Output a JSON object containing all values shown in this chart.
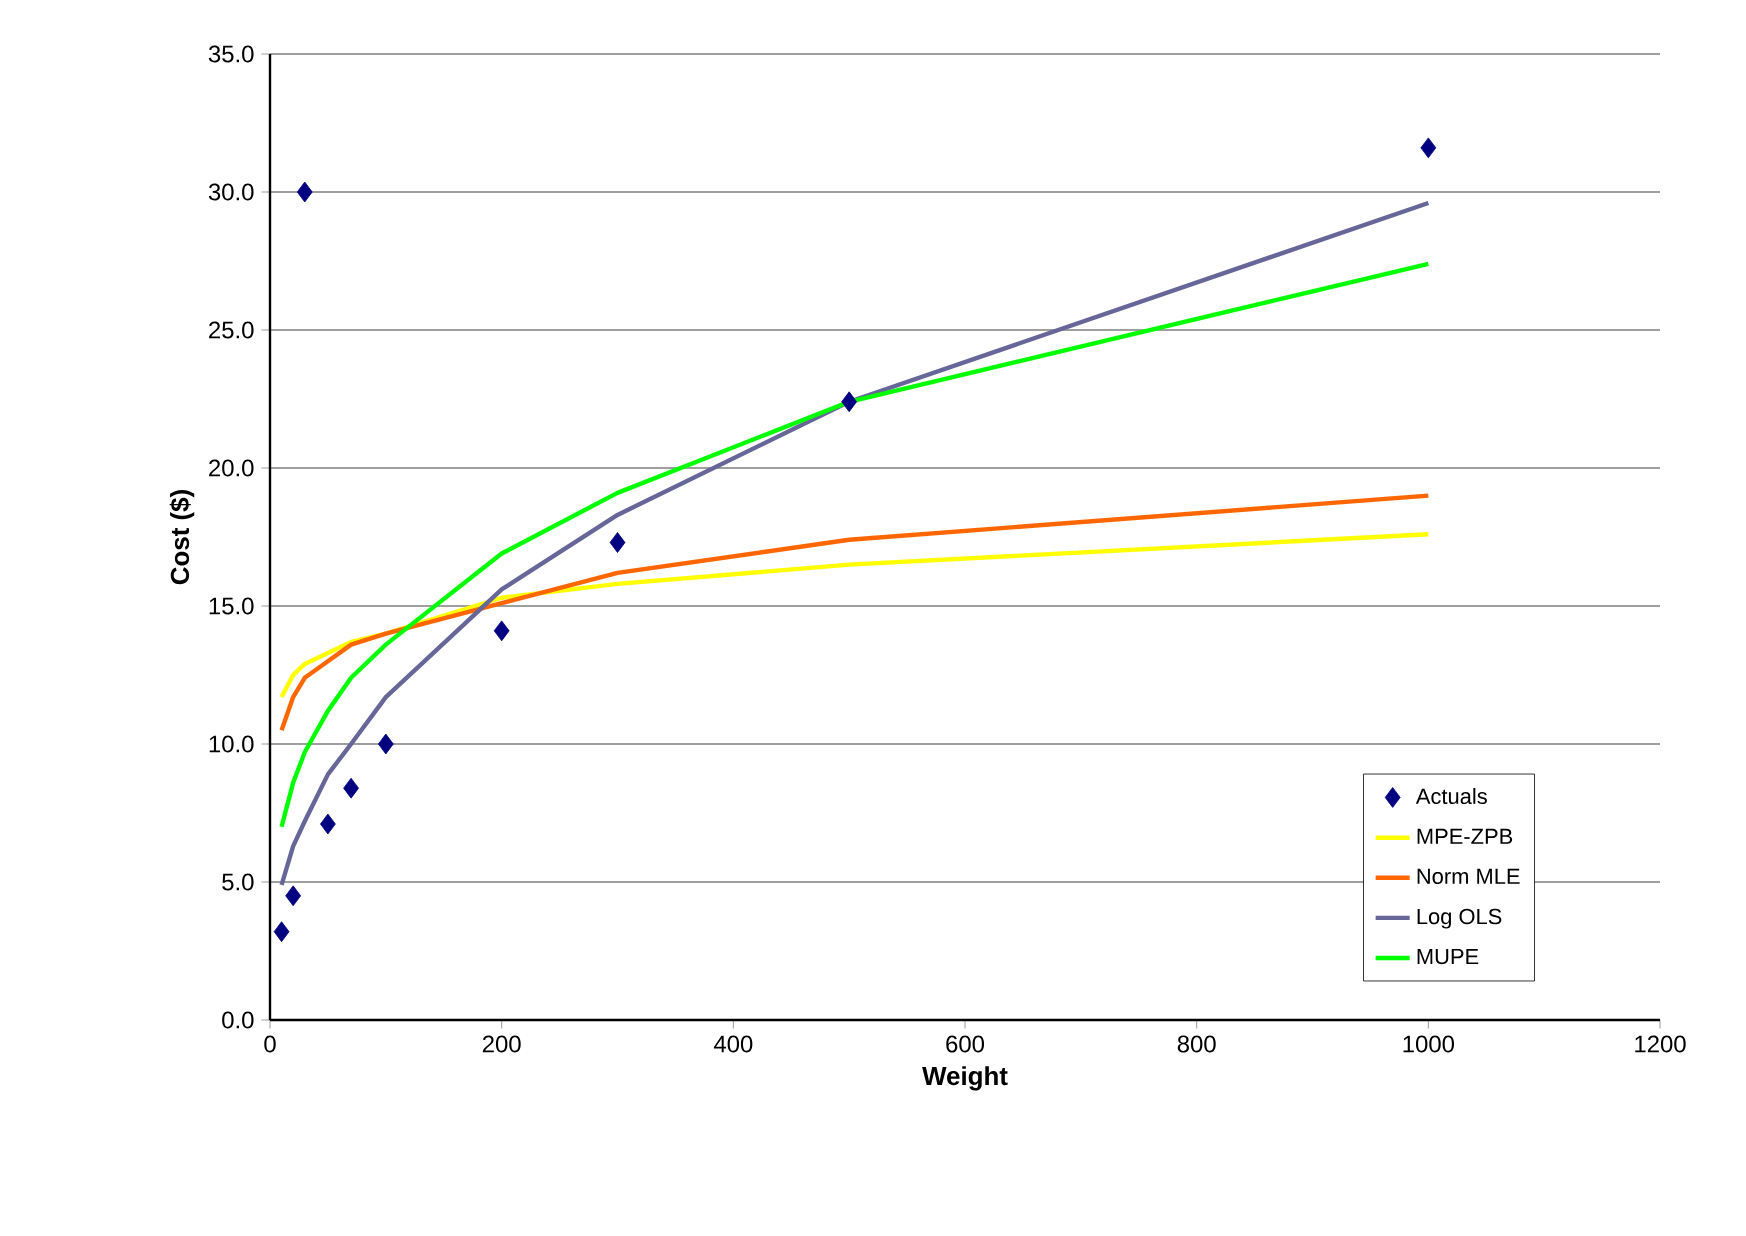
{
  "chart_data": {
    "type": "line",
    "xlabel": "Weight",
    "ylabel": "Cost ($)",
    "xlim": [
      0,
      1200
    ],
    "xticks": [
      0,
      200,
      400,
      600,
      800,
      1000,
      1200
    ],
    "ylim": [
      0,
      35
    ],
    "yticks": [
      {
        "value": 0,
        "label": "0.0"
      },
      {
        "value": 5,
        "label": "5.0"
      },
      {
        "value": 10,
        "label": "10.0"
      },
      {
        "value": 15,
        "label": "15.0"
      },
      {
        "value": 20,
        "label": "20.0"
      },
      {
        "value": 25,
        "label": "25.0"
      },
      {
        "value": 30,
        "label": "30.0"
      },
      {
        "value": 35,
        "label": "35.0"
      }
    ],
    "grid": "y",
    "legend": "bottom right",
    "series": [
      {
        "name": "Actuals",
        "type": "scatter",
        "marker": "diamond",
        "color": "#000080",
        "x": [
          10,
          20,
          30,
          50,
          70,
          100,
          200,
          300,
          500,
          1000
        ],
        "values": [
          3.2,
          4.5,
          30.0,
          7.1,
          8.4,
          10.0,
          14.1,
          17.3,
          22.4,
          31.6
        ]
      },
      {
        "name": "MPE-ZPB",
        "color": "#ffff00",
        "x": [
          10,
          20,
          30,
          50,
          70,
          100,
          200,
          300,
          500,
          1000
        ],
        "values": [
          11.7,
          12.5,
          12.9,
          13.3,
          13.7,
          14.0,
          15.3,
          15.8,
          16.5,
          17.6
        ]
      },
      {
        "name": "Norm MLE",
        "color": "#ff6600",
        "x": [
          10,
          20,
          30,
          50,
          70,
          100,
          200,
          300,
          500,
          1000
        ],
        "values": [
          10.5,
          11.7,
          12.4,
          13.0,
          13.6,
          14.0,
          15.1,
          16.2,
          17.4,
          19.0
        ]
      },
      {
        "name": "Log OLS",
        "color": "#666699",
        "x": [
          10,
          20,
          30,
          50,
          70,
          100,
          200,
          300,
          500,
          1000
        ],
        "values": [
          4.9,
          6.3,
          7.2,
          8.9,
          10.0,
          11.7,
          15.6,
          18.3,
          22.4,
          29.6
        ]
      },
      {
        "name": "MUPE",
        "color": "#00ff00",
        "x": [
          10,
          20,
          30,
          50,
          70,
          100,
          200,
          300,
          500,
          1000
        ],
        "values": [
          7.0,
          8.6,
          9.7,
          11.2,
          12.4,
          13.6,
          16.9,
          19.1,
          22.4,
          27.4
        ]
      }
    ]
  }
}
